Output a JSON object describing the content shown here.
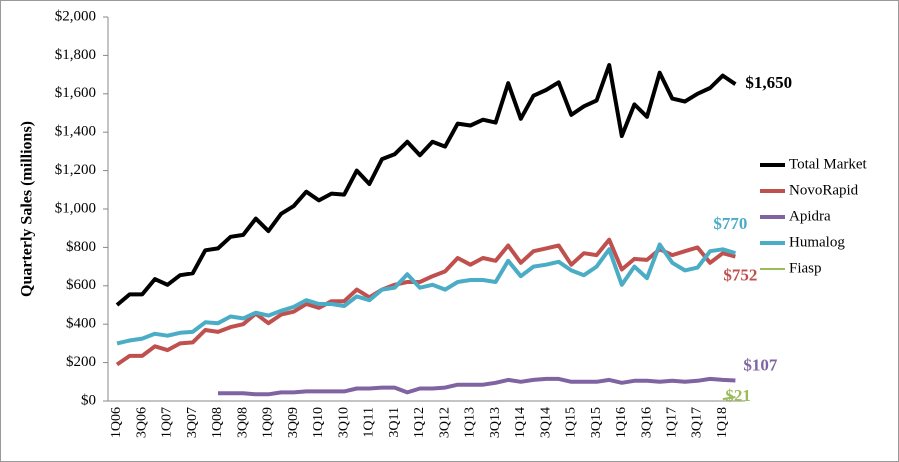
{
  "chart_data": {
    "type": "line",
    "y_label": "Quarterly Sales (millions)",
    "categories": [
      "1Q06",
      null,
      "3Q06",
      null,
      "1Q07",
      null,
      "3Q07",
      null,
      "1Q08",
      null,
      "3Q08",
      null,
      "1Q09",
      null,
      "3Q09",
      null,
      "1Q10",
      null,
      "3Q10",
      null,
      "1Q11",
      null,
      "3Q11",
      null,
      "1Q12",
      null,
      "3Q12",
      null,
      "1Q13",
      null,
      "3Q13",
      null,
      "1Q14",
      null,
      "3Q14",
      null,
      "1Q15",
      null,
      "3Q15",
      null,
      "1Q16",
      null,
      "3Q16",
      null,
      "1Q17",
      null,
      "3Q17",
      null,
      "1Q18",
      null
    ],
    "ylim": [
      0,
      2000
    ],
    "yticks": [
      {
        "value": 0,
        "label": "$0"
      },
      {
        "value": 200,
        "label": "$200"
      },
      {
        "value": 400,
        "label": "$400"
      },
      {
        "value": 600,
        "label": "$600"
      },
      {
        "value": 800,
        "label": "$800"
      },
      {
        "value": 1000,
        "label": "$1,000"
      },
      {
        "value": 1200,
        "label": "$1,200"
      },
      {
        "value": 1400,
        "label": "$1,400"
      },
      {
        "value": 1600,
        "label": "$1,600"
      },
      {
        "value": 1800,
        "label": "$1,800"
      },
      {
        "value": 2000,
        "label": "$2,000"
      }
    ],
    "legend": "right",
    "series": [
      {
        "name": "Total Market",
        "color": "#000000",
        "values": [
          500,
          555,
          555,
          635,
          605,
          655,
          665,
          785,
          795,
          855,
          865,
          950,
          885,
          975,
          1015,
          1090,
          1045,
          1080,
          1075,
          1200,
          1130,
          1260,
          1285,
          1350,
          1280,
          1350,
          1325,
          1445,
          1435,
          1465,
          1450,
          1655,
          1470,
          1590,
          1620,
          1660,
          1490,
          1535,
          1565,
          1750,
          1380,
          1545,
          1480,
          1710,
          1575,
          1560,
          1600,
          1630,
          1695,
          1650
        ],
        "value_labels": [
          null,
          null,
          null,
          null,
          null,
          null,
          null,
          null,
          null,
          null,
          null,
          null,
          null,
          null,
          null,
          null,
          null,
          null,
          null,
          null,
          null,
          null,
          null,
          null,
          null,
          null,
          null,
          null,
          null,
          null,
          null,
          null,
          null,
          null,
          null,
          null,
          null,
          null,
          null,
          null,
          null,
          null,
          null,
          null,
          null,
          null,
          null,
          null,
          null,
          "$1,650"
        ]
      },
      {
        "name": "NovoRapid",
        "color": "#c0504d",
        "values": [
          190,
          235,
          235,
          285,
          265,
          300,
          305,
          370,
          360,
          385,
          400,
          455,
          405,
          450,
          465,
          505,
          485,
          520,
          520,
          580,
          540,
          580,
          605,
          620,
          620,
          650,
          675,
          745,
          710,
          745,
          730,
          810,
          720,
          780,
          795,
          810,
          710,
          770,
          760,
          840,
          685,
          740,
          735,
          790,
          760,
          780,
          800,
          720,
          770,
          752
        ],
        "value_labels": [
          null,
          null,
          null,
          null,
          null,
          null,
          null,
          null,
          null,
          null,
          null,
          null,
          null,
          null,
          null,
          null,
          null,
          null,
          null,
          null,
          null,
          null,
          null,
          null,
          null,
          null,
          null,
          null,
          null,
          null,
          null,
          null,
          null,
          null,
          null,
          null,
          null,
          null,
          null,
          null,
          null,
          null,
          null,
          null,
          null,
          null,
          null,
          null,
          null,
          "$752"
        ]
      },
      {
        "name": "Apidra",
        "color": "#8064a2",
        "values": [
          null,
          null,
          null,
          null,
          null,
          null,
          null,
          null,
          40,
          40,
          40,
          35,
          35,
          45,
          45,
          50,
          50,
          50,
          50,
          65,
          65,
          70,
          70,
          45,
          65,
          65,
          70,
          85,
          85,
          85,
          95,
          110,
          100,
          110,
          115,
          115,
          100,
          100,
          100,
          110,
          95,
          105,
          105,
          100,
          105,
          100,
          105,
          115,
          110,
          107
        ],
        "value_labels": [
          null,
          null,
          null,
          null,
          null,
          null,
          null,
          null,
          null,
          null,
          null,
          null,
          null,
          null,
          null,
          null,
          null,
          null,
          null,
          null,
          null,
          null,
          null,
          null,
          null,
          null,
          null,
          null,
          null,
          null,
          null,
          null,
          null,
          null,
          null,
          null,
          null,
          null,
          null,
          null,
          null,
          null,
          null,
          null,
          null,
          null,
          null,
          null,
          null,
          "$107"
        ]
      },
      {
        "name": "Humalog",
        "color": "#4bacc6",
        "values": [
          300,
          315,
          325,
          350,
          340,
          355,
          360,
          410,
          405,
          440,
          430,
          460,
          445,
          470,
          490,
          525,
          505,
          505,
          495,
          545,
          525,
          580,
          590,
          660,
          590,
          605,
          580,
          620,
          630,
          630,
          620,
          730,
          650,
          700,
          710,
          725,
          680,
          655,
          700,
          790,
          605,
          700,
          640,
          815,
          720,
          680,
          695,
          780,
          790,
          770
        ],
        "value_labels": [
          null,
          null,
          null,
          null,
          null,
          null,
          null,
          null,
          null,
          null,
          null,
          null,
          null,
          null,
          null,
          null,
          null,
          null,
          null,
          null,
          null,
          null,
          null,
          null,
          null,
          null,
          null,
          null,
          null,
          null,
          null,
          null,
          null,
          null,
          null,
          null,
          null,
          null,
          null,
          null,
          null,
          null,
          null,
          null,
          null,
          null,
          null,
          null,
          null,
          "$770"
        ]
      },
      {
        "name": "Fiasp",
        "color": "#9bbb59",
        "values": [
          null,
          null,
          null,
          null,
          null,
          null,
          null,
          null,
          null,
          null,
          null,
          null,
          null,
          null,
          null,
          null,
          null,
          null,
          null,
          null,
          null,
          null,
          null,
          null,
          null,
          null,
          null,
          null,
          null,
          null,
          null,
          null,
          null,
          null,
          null,
          null,
          null,
          null,
          null,
          null,
          null,
          null,
          null,
          null,
          null,
          null,
          null,
          null,
          10,
          21
        ],
        "value_labels": [
          null,
          null,
          null,
          null,
          null,
          null,
          null,
          null,
          null,
          null,
          null,
          null,
          null,
          null,
          null,
          null,
          null,
          null,
          null,
          null,
          null,
          null,
          null,
          null,
          null,
          null,
          null,
          null,
          null,
          null,
          null,
          null,
          null,
          null,
          null,
          null,
          null,
          null,
          null,
          null,
          null,
          null,
          null,
          null,
          null,
          null,
          null,
          null,
          null,
          "$21"
        ]
      }
    ]
  }
}
